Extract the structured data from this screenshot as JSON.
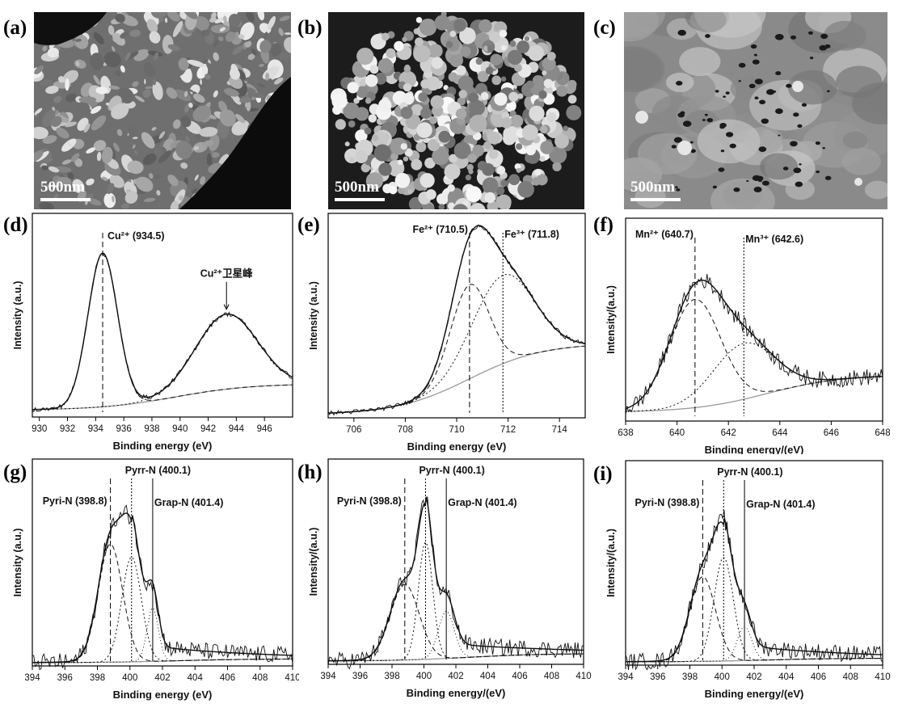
{
  "figure": {
    "sem_panels": [
      {
        "label": "(a)",
        "scale": "500nm",
        "texture": "flaky-porous"
      },
      {
        "label": "(b)",
        "scale": "500nm",
        "texture": "granular-aggregate"
      },
      {
        "label": "(c)",
        "scale": "500nm",
        "texture": "smooth-with-pores"
      }
    ],
    "colors": {
      "line": "#111111",
      "baseline": "#999999",
      "axis": "#000000"
    }
  },
  "chart_data": [
    {
      "panel": "(d)",
      "type": "line",
      "title": "",
      "xlabel": "Binding energy (eV)",
      "ylabel": "Intensity (a.u.)",
      "xlim": [
        929.5,
        948
      ],
      "xticks": [
        930,
        932,
        934,
        936,
        938,
        940,
        942,
        944,
        946
      ],
      "peaks": [
        {
          "name": "Cu²⁺",
          "label": "Cu²⁺ (934.5)",
          "center": 934.5,
          "amp": 0.82,
          "sigma": 1.05
        },
        {
          "name": "Cu²⁺卫星峰",
          "label": "Cu²⁺卫星峰",
          "center": 943.3,
          "amp": 0.4,
          "sigma": 2.2
        }
      ],
      "bg_start": 0.02,
      "bg_end": 0.16,
      "dashed_lines": [
        934.5
      ],
      "annotation": "Cu²⁺卫星峰"
    },
    {
      "panel": "(e)",
      "type": "line",
      "title": "",
      "xlabel": "Binding energy (eV)",
      "ylabel": "Intensity (a.u.)",
      "xlim": [
        705,
        715
      ],
      "xticks": [
        706,
        708,
        710,
        712,
        714
      ],
      "peaks": [
        {
          "name": "Fe²⁺",
          "label": "Fe²⁺ (710.5)",
          "center": 710.5,
          "amp": 0.5,
          "sigma": 0.75
        },
        {
          "name": "Fe³⁺",
          "label": "Fe³⁺ (711.8)",
          "center": 711.8,
          "amp": 0.47,
          "sigma": 1.2
        }
      ],
      "bg_start": 0.0,
      "bg_end": 0.38,
      "dashed_lines": [
        710.5,
        711.8
      ]
    },
    {
      "panel": "(f)",
      "type": "line",
      "title": "",
      "xlabel": "Binding energy/(eV)",
      "ylabel": "Intensity/(a.u.)",
      "xlim": [
        638,
        648
      ],
      "xticks": [
        638,
        640,
        642,
        644,
        646,
        648
      ],
      "peaks": [
        {
          "name": "Mn²⁺",
          "label": "Mn²⁺ (640.7)",
          "center": 640.7,
          "amp": 0.58,
          "sigma": 1.0
        },
        {
          "name": "Mn³⁺",
          "label": "Mn³⁺ (642.6)",
          "center": 642.6,
          "amp": 0.3,
          "sigma": 1.2
        }
      ],
      "bg_start": 0.03,
      "bg_end": 0.23,
      "dashed_lines": [
        640.7,
        642.6
      ]
    },
    {
      "panel": "(g)",
      "type": "line",
      "title": "",
      "xlabel": "Binding energy (eV)",
      "ylabel": "Intensity (a.u.)",
      "xlim": [
        394,
        410
      ],
      "xticks": [
        394,
        396,
        398,
        400,
        402,
        404,
        406,
        408,
        410
      ],
      "peaks": [
        {
          "name": "Pyri-N",
          "label": "Pyri-N (398.8)",
          "center": 398.8,
          "amp": 0.62,
          "sigma": 0.75
        },
        {
          "name": "Pyrr-N",
          "label": "Pyrr-N (400.1)",
          "center": 400.1,
          "amp": 0.55,
          "sigma": 0.6
        },
        {
          "name": "Grap-N",
          "label": "Grap-N (401.4)",
          "center": 401.4,
          "amp": 0.28,
          "sigma": 0.35
        }
      ],
      "bg_start": 0.0,
      "bg_end": 0.02,
      "tail": 0.1,
      "dashed_lines": [
        398.8,
        400.1,
        401.4
      ]
    },
    {
      "panel": "(h)",
      "type": "line",
      "title": "",
      "xlabel": "Binding energy/(eV)",
      "ylabel": "Intensity/(a.u.)",
      "xlim": [
        394,
        410
      ],
      "xticks": [
        394,
        396,
        398,
        400,
        402,
        404,
        406,
        408,
        410
      ],
      "peaks": [
        {
          "name": "Pyri-N",
          "label": "Pyri-N (398.8)",
          "center": 398.8,
          "amp": 0.4,
          "sigma": 0.9
        },
        {
          "name": "Pyrr-N",
          "label": "Pyrr-N (400.1)",
          "center": 400.1,
          "amp": 0.62,
          "sigma": 0.45
        },
        {
          "name": "Grap-N",
          "label": "Grap-N (401.4)",
          "center": 401.4,
          "amp": 0.25,
          "sigma": 0.5
        }
      ],
      "bg_start": 0.0,
      "bg_end": 0.04,
      "tail": 0.1,
      "dashed_lines": [
        398.8,
        400.1,
        401.4
      ]
    },
    {
      "panel": "(i)",
      "type": "line",
      "title": "",
      "xlabel": "Binding energy/(eV)",
      "ylabel": "Intensity/(a.u.)",
      "xlim": [
        394,
        410
      ],
      "xticks": [
        394,
        396,
        398,
        400,
        402,
        404,
        406,
        408,
        410
      ],
      "peaks": [
        {
          "name": "Pyri-N",
          "label": "Pyri-N (398.8)",
          "center": 398.8,
          "amp": 0.45,
          "sigma": 0.8
        },
        {
          "name": "Pyrr-N",
          "label": "Pyrr-N (400.1)",
          "center": 400.1,
          "amp": 0.55,
          "sigma": 0.6
        },
        {
          "name": "Grap-N",
          "label": "Grap-N (401.4)",
          "center": 401.4,
          "amp": 0.18,
          "sigma": 0.45
        }
      ],
      "bg_start": 0.0,
      "bg_end": 0.02,
      "tail": 0.1,
      "dashed_lines": [
        398.8,
        400.1,
        401.4
      ]
    }
  ]
}
